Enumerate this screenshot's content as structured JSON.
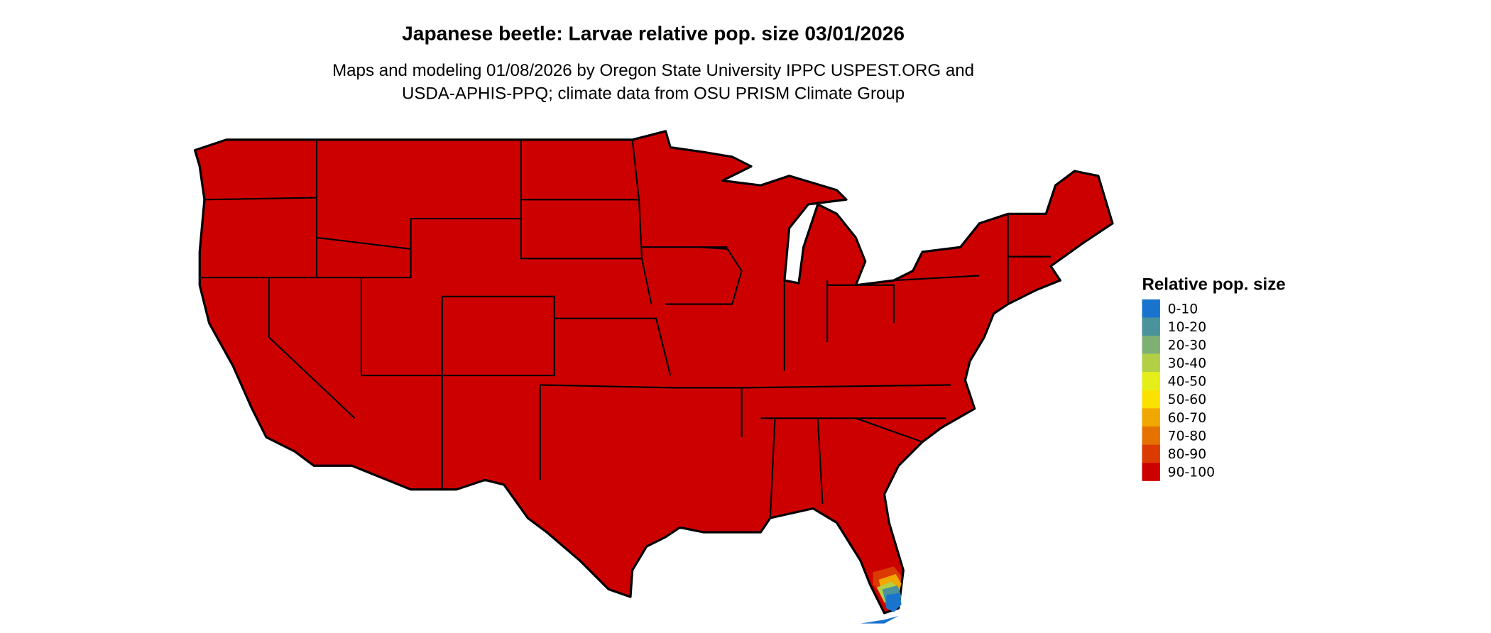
{
  "title": "Japanese beetle: Larvae relative pop. size 03/01/2026",
  "subtitle_line1": "Maps and modeling 01/08/2026 by Oregon State University IPPC USPEST.ORG and",
  "subtitle_line2": "USDA-APHIS-PPQ; climate data from OSU PRISM Climate Group",
  "map": {
    "region": "Contiguous United States",
    "dominant_class": "90-100",
    "low_values_area": "southern Florida tip"
  },
  "legend": {
    "title": "Relative pop. size",
    "items": [
      {
        "label": "0-10",
        "color": "#1874cd"
      },
      {
        "label": "10-20",
        "color": "#4a929c"
      },
      {
        "label": "20-30",
        "color": "#7fb073"
      },
      {
        "label": "30-40",
        "color": "#b3cf46"
      },
      {
        "label": "40-50",
        "color": "#e5ee18"
      },
      {
        "label": "50-60",
        "color": "#fae100"
      },
      {
        "label": "60-70",
        "color": "#f0a800"
      },
      {
        "label": "70-80",
        "color": "#e57200"
      },
      {
        "label": "80-90",
        "color": "#db3a00"
      },
      {
        "label": "90-100",
        "color": "#cd0000"
      }
    ]
  }
}
